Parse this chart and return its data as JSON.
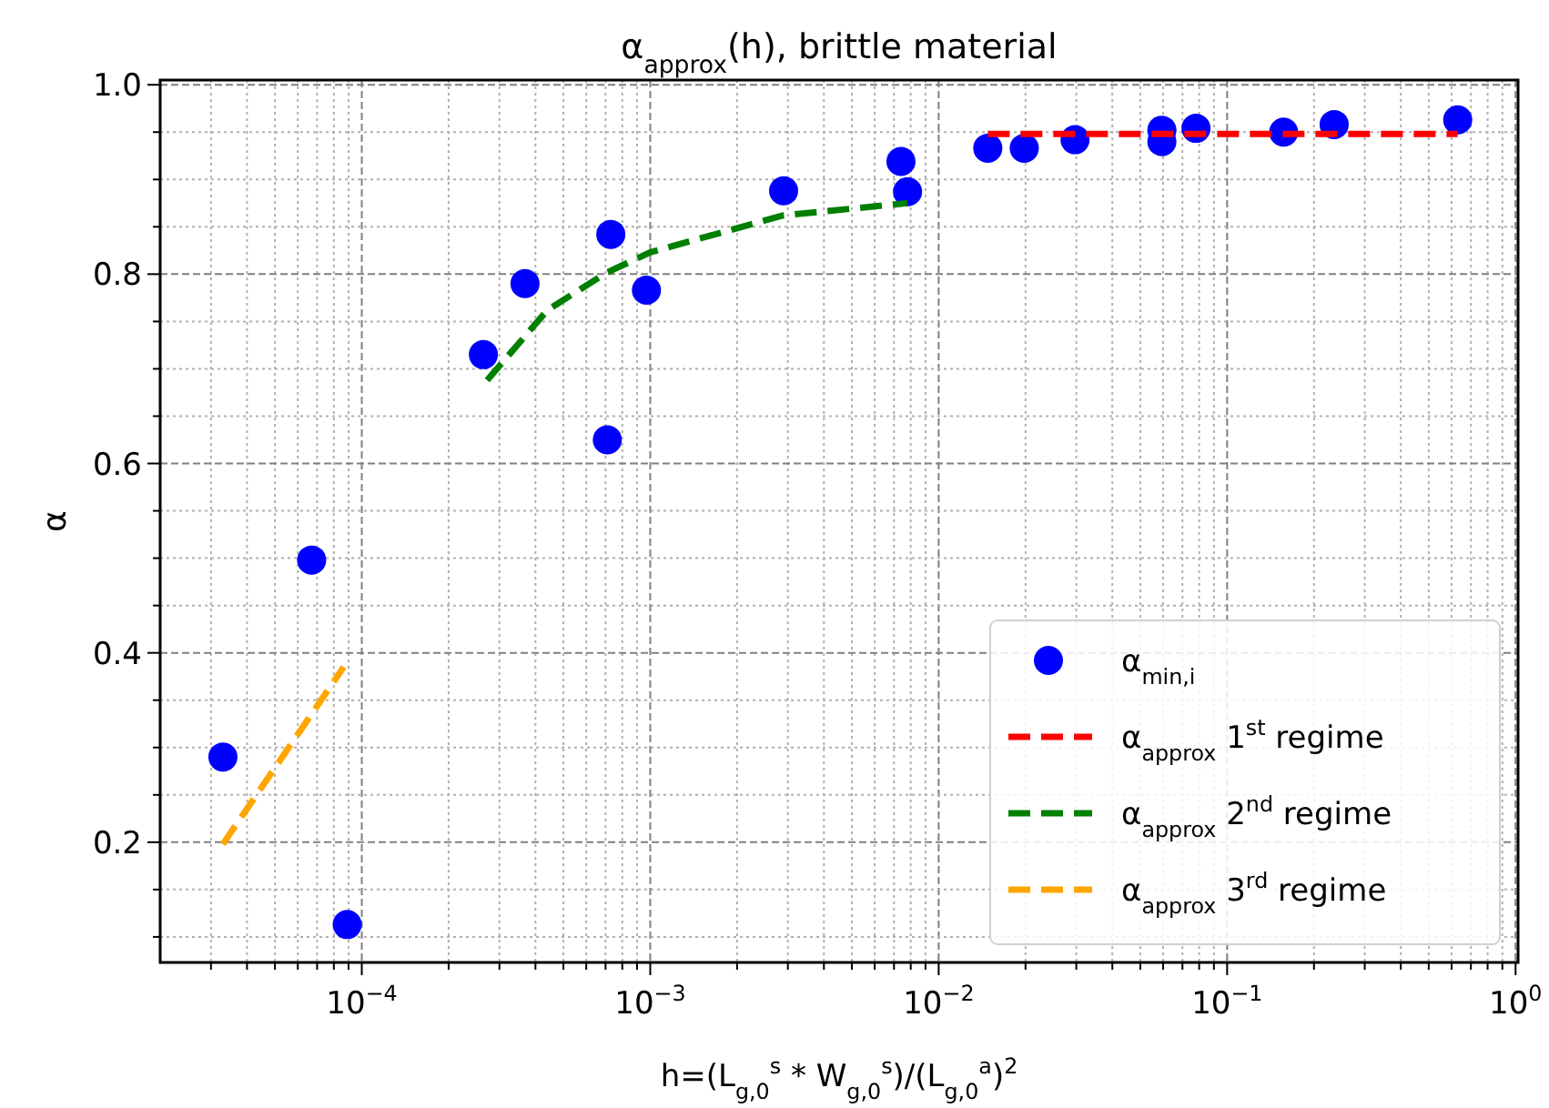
{
  "chart_data": {
    "type": "scatter",
    "title": "α$_{approx}$(h), brittle material",
    "xlabel": "h=(L$_{g,0}$$^{s}$ * W$_{g,0}$$^{s}$)/(L$_{g,0}$$^{a}$)$^{2}$",
    "ylabel": "α",
    "log": "x",
    "grid": true,
    "legend": "bottom right",
    "xlim": [
      2e-05,
      1.02
    ],
    "ylim": [
      0.073,
      1.005
    ],
    "xticks": [
      {
        "value": 3e-05,
        "label": null
      },
      {
        "value": 4e-05,
        "label": null
      },
      {
        "value": 5e-05,
        "label": null
      },
      {
        "value": 6e-05,
        "label": null
      },
      {
        "value": 7e-05,
        "label": null
      },
      {
        "value": 8e-05,
        "label": null
      },
      {
        "value": 9e-05,
        "label": null
      },
      {
        "value": 0.0001,
        "label": "10$^{−4}$"
      },
      {
        "value": 0.0002,
        "label": null
      },
      {
        "value": 0.0003,
        "label": null
      },
      {
        "value": 0.0004,
        "label": null
      },
      {
        "value": 0.0005,
        "label": null
      },
      {
        "value": 0.0006,
        "label": null
      },
      {
        "value": 0.0007,
        "label": null
      },
      {
        "value": 0.0008,
        "label": null
      },
      {
        "value": 0.0009,
        "label": null
      },
      {
        "value": 0.001,
        "label": "10$^{−3}$"
      },
      {
        "value": 0.002,
        "label": null
      },
      {
        "value": 0.003,
        "label": null
      },
      {
        "value": 0.004,
        "label": null
      },
      {
        "value": 0.005,
        "label": null
      },
      {
        "value": 0.006,
        "label": null
      },
      {
        "value": 0.007,
        "label": null
      },
      {
        "value": 0.008,
        "label": null
      },
      {
        "value": 0.009,
        "label": null
      },
      {
        "value": 0.01,
        "label": "10$^{−2}$"
      },
      {
        "value": 0.02,
        "label": null
      },
      {
        "value": 0.03,
        "label": null
      },
      {
        "value": 0.04,
        "label": null
      },
      {
        "value": 0.05,
        "label": null
      },
      {
        "value": 0.06,
        "label": null
      },
      {
        "value": 0.07,
        "label": null
      },
      {
        "value": 0.08,
        "label": null
      },
      {
        "value": 0.09,
        "label": null
      },
      {
        "value": 0.1,
        "label": "10$^{−1}$"
      },
      {
        "value": 0.2,
        "label": null
      },
      {
        "value": 0.3,
        "label": null
      },
      {
        "value": 0.4,
        "label": null
      },
      {
        "value": 0.5,
        "label": null
      },
      {
        "value": 0.6,
        "label": null
      },
      {
        "value": 0.7,
        "label": null
      },
      {
        "value": 0.8,
        "label": null
      },
      {
        "value": 0.9,
        "label": null
      },
      {
        "value": 1,
        "label": "10$^{0}$"
      }
    ],
    "yticks": [
      {
        "value": 0.1,
        "label": null
      },
      {
        "value": 0.15,
        "label": null
      },
      0.2,
      {
        "value": 0.25,
        "label": null
      },
      {
        "value": 0.3,
        "label": null
      },
      {
        "value": 0.35,
        "label": null
      },
      0.4,
      {
        "value": 0.45,
        "label": null
      },
      {
        "value": 0.5,
        "label": null
      },
      {
        "value": 0.55,
        "label": null
      },
      0.6,
      {
        "value": 0.65,
        "label": null
      },
      {
        "value": 0.7,
        "label": null
      },
      {
        "value": 0.75,
        "label": null
      },
      0.8,
      {
        "value": 0.85,
        "label": null
      },
      {
        "value": 0.9,
        "label": null
      },
      {
        "value": 0.95,
        "label": null
      },
      {
        "value": 1,
        "label": "1.0"
      }
    ],
    "series": [
      {
        "name": "α$_{min,i}$",
        "marker": "circle",
        "color": "#0000ff",
        "x": [
          3.3e-05,
          6.7e-05,
          8.9e-05,
          0.000264,
          0.000368,
          0.00073,
          0.00071,
          0.00097,
          0.0029,
          0.0074,
          0.0078,
          0.0148,
          0.0198,
          0.0297,
          0.0594,
          0.0594,
          0.078,
          0.157,
          0.235,
          0.63
        ],
        "values": [
          0.29,
          0.498,
          0.113,
          0.715,
          0.79,
          0.842,
          0.625,
          0.783,
          0.888,
          0.919,
          0.887,
          0.933,
          0.933,
          0.942,
          0.952,
          0.94,
          0.954,
          0.95,
          0.958,
          0.963
        ]
      },
      {
        "name": "α$_{approx}$ 1$^{st}$ regime",
        "type": "line",
        "line_style": "dashed",
        "color": "#ff0000",
        "x": [
          0.0148,
          0.63
        ],
        "values": [
          0.948,
          0.948
        ]
      },
      {
        "name": "α$_{approx}$ 2$^{nd}$ regime",
        "type": "line",
        "line_style": "dashed",
        "color": "#008000",
        "x": [
          0.000272,
          0.00044,
          0.00071,
          0.001,
          0.00288,
          0.0078
        ],
        "values": [
          0.688,
          0.762,
          0.802,
          0.823,
          0.862,
          0.875
        ]
      },
      {
        "name": "α$_{approx}$ 3$^{rd}$ regime",
        "type": "line",
        "line_style": "dashed",
        "color": "#ffa500",
        "x": [
          3.3e-05,
          8.65e-05
        ],
        "values": [
          0.198,
          0.385
        ]
      }
    ]
  }
}
